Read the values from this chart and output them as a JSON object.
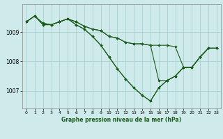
{
  "title": "Graphe pression niveau de la mer (hPa)",
  "bg_color": "#ceeaea",
  "grid_color": "#aad0d0",
  "line_color": "#1a5c1a",
  "marker_color": "#1a5c1a",
  "xlim": [
    -0.5,
    23.5
  ],
  "ylim": [
    1006.4,
    1009.95
  ],
  "yticks": [
    1007,
    1008,
    1009
  ],
  "xticks": [
    0,
    1,
    2,
    3,
    4,
    5,
    6,
    7,
    8,
    9,
    10,
    11,
    12,
    13,
    14,
    15,
    16,
    17,
    18,
    19,
    20,
    21,
    22,
    23
  ],
  "series": [
    [
      1009.35,
      1009.55,
      1009.3,
      1009.25,
      1009.35,
      1009.45,
      1009.35,
      1009.2,
      1009.1,
      1009.05,
      1008.85,
      1008.8,
      1008.65,
      1008.6,
      1008.6,
      1008.55,
      1008.55,
      1008.55,
      1008.5,
      1007.8,
      1007.8,
      1008.15,
      1008.45,
      1008.45
    ],
    [
      1009.35,
      1009.55,
      1009.3,
      1009.25,
      1009.35,
      1009.45,
      1009.35,
      1009.2,
      1009.1,
      1009.05,
      1008.85,
      1008.8,
      1008.65,
      1008.6,
      1008.6,
      1008.55,
      1007.35,
      1007.35,
      1007.5,
      1007.8,
      1007.8,
      1008.15,
      1008.45,
      1008.45
    ],
    [
      1009.35,
      1009.55,
      1009.25,
      1009.25,
      1009.35,
      1009.45,
      1009.25,
      1009.1,
      1008.85,
      1008.55,
      1008.15,
      1007.75,
      1007.4,
      1007.1,
      1006.85,
      1006.65,
      1007.1,
      1007.35,
      1007.5,
      1007.8,
      1007.8,
      1008.15,
      1008.45,
      1008.45
    ],
    [
      1009.35,
      1009.55,
      1009.25,
      1009.25,
      1009.35,
      1009.45,
      1009.25,
      1009.1,
      1008.85,
      1008.55,
      1008.15,
      1007.75,
      1007.4,
      1007.1,
      1006.85,
      1006.65,
      1007.1,
      1007.35,
      1007.5,
      1007.8,
      1007.8,
      1008.15,
      1008.45,
      1008.45
    ]
  ]
}
